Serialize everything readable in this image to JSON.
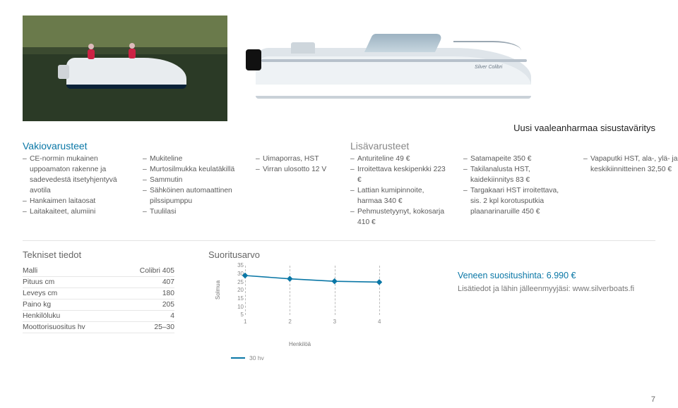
{
  "tagline": "Uusi vaaleanharmaa sisustaväritys",
  "boat_badge": "Silver Colibri",
  "vakio": {
    "heading": "Vakiovarusteet",
    "heading_color": "#0a77a6",
    "columns": [
      [
        "CE-normin mukainen uppoamaton rakenne ja sadevedestä itsetyhjentyvä avotila",
        "Hankaimen laitaosat",
        "Laitakaiteet, alumiini"
      ],
      [
        "Mukiteline",
        "Murtosilmukka keulatäkillä",
        "Sammutin",
        "Sähköinen automaattinen pilssipumppu",
        "Tuulilasi"
      ],
      [
        "Uimaporras, HST",
        "Virran ulosotto 12 V"
      ]
    ]
  },
  "lisa": {
    "heading": "Lisävarusteet",
    "heading_color": "#888888",
    "columns": [
      [
        "Anturiteline 49 €",
        "Irroitettava keskipenkki 223 €",
        "Lattian kumipinnoite, harmaa 340 €",
        "Pehmustetyynyt, kokosarja 410 €"
      ],
      [
        "Satamapeite 350 €",
        "Takilanalusta HST, kaidekiinnitys 83 €",
        "Targakaari HST irroitettava, sis. 2 kpl korotusputkia plaanarinaruille 450 €"
      ],
      [
        "Vapaputki HST, ala-, ylä- ja keskikiinnitteinen 32,50 €"
      ]
    ]
  },
  "tech": {
    "heading": "Tekniset tiedot",
    "rows": [
      [
        "Malli",
        "Colibri 405"
      ],
      [
        "Pituus cm",
        "407"
      ],
      [
        "Leveys cm",
        "180"
      ],
      [
        "Paino kg",
        "205"
      ],
      [
        "Henkilöluku",
        "4"
      ],
      [
        "Moottorisuositus hv",
        "25–30"
      ]
    ]
  },
  "perf": {
    "heading": "Suoritusarvo",
    "ylabel": "Solmua",
    "xlabel": "Henkilöä",
    "y_ticks": [
      5,
      10,
      15,
      20,
      25,
      30,
      35
    ],
    "x_ticks": [
      1,
      2,
      3,
      4
    ],
    "ylim": [
      5,
      35
    ],
    "xlim": [
      1,
      4
    ],
    "series_label": "30 hv",
    "series_color": "#0a77a6",
    "grid_color": "#bbbbbb",
    "tick_color": "#888888",
    "points": [
      {
        "x": 1,
        "y": 29
      },
      {
        "x": 2,
        "y": 27
      },
      {
        "x": 3,
        "y": 25.5
      },
      {
        "x": 4,
        "y": 25
      }
    ]
  },
  "price_line": "Veneen suositushinta: 6.990 €",
  "more_line": "Lisätiedot ja lähin jälleenmyyjäsi: www.silverboats.fi",
  "page_number": "7"
}
